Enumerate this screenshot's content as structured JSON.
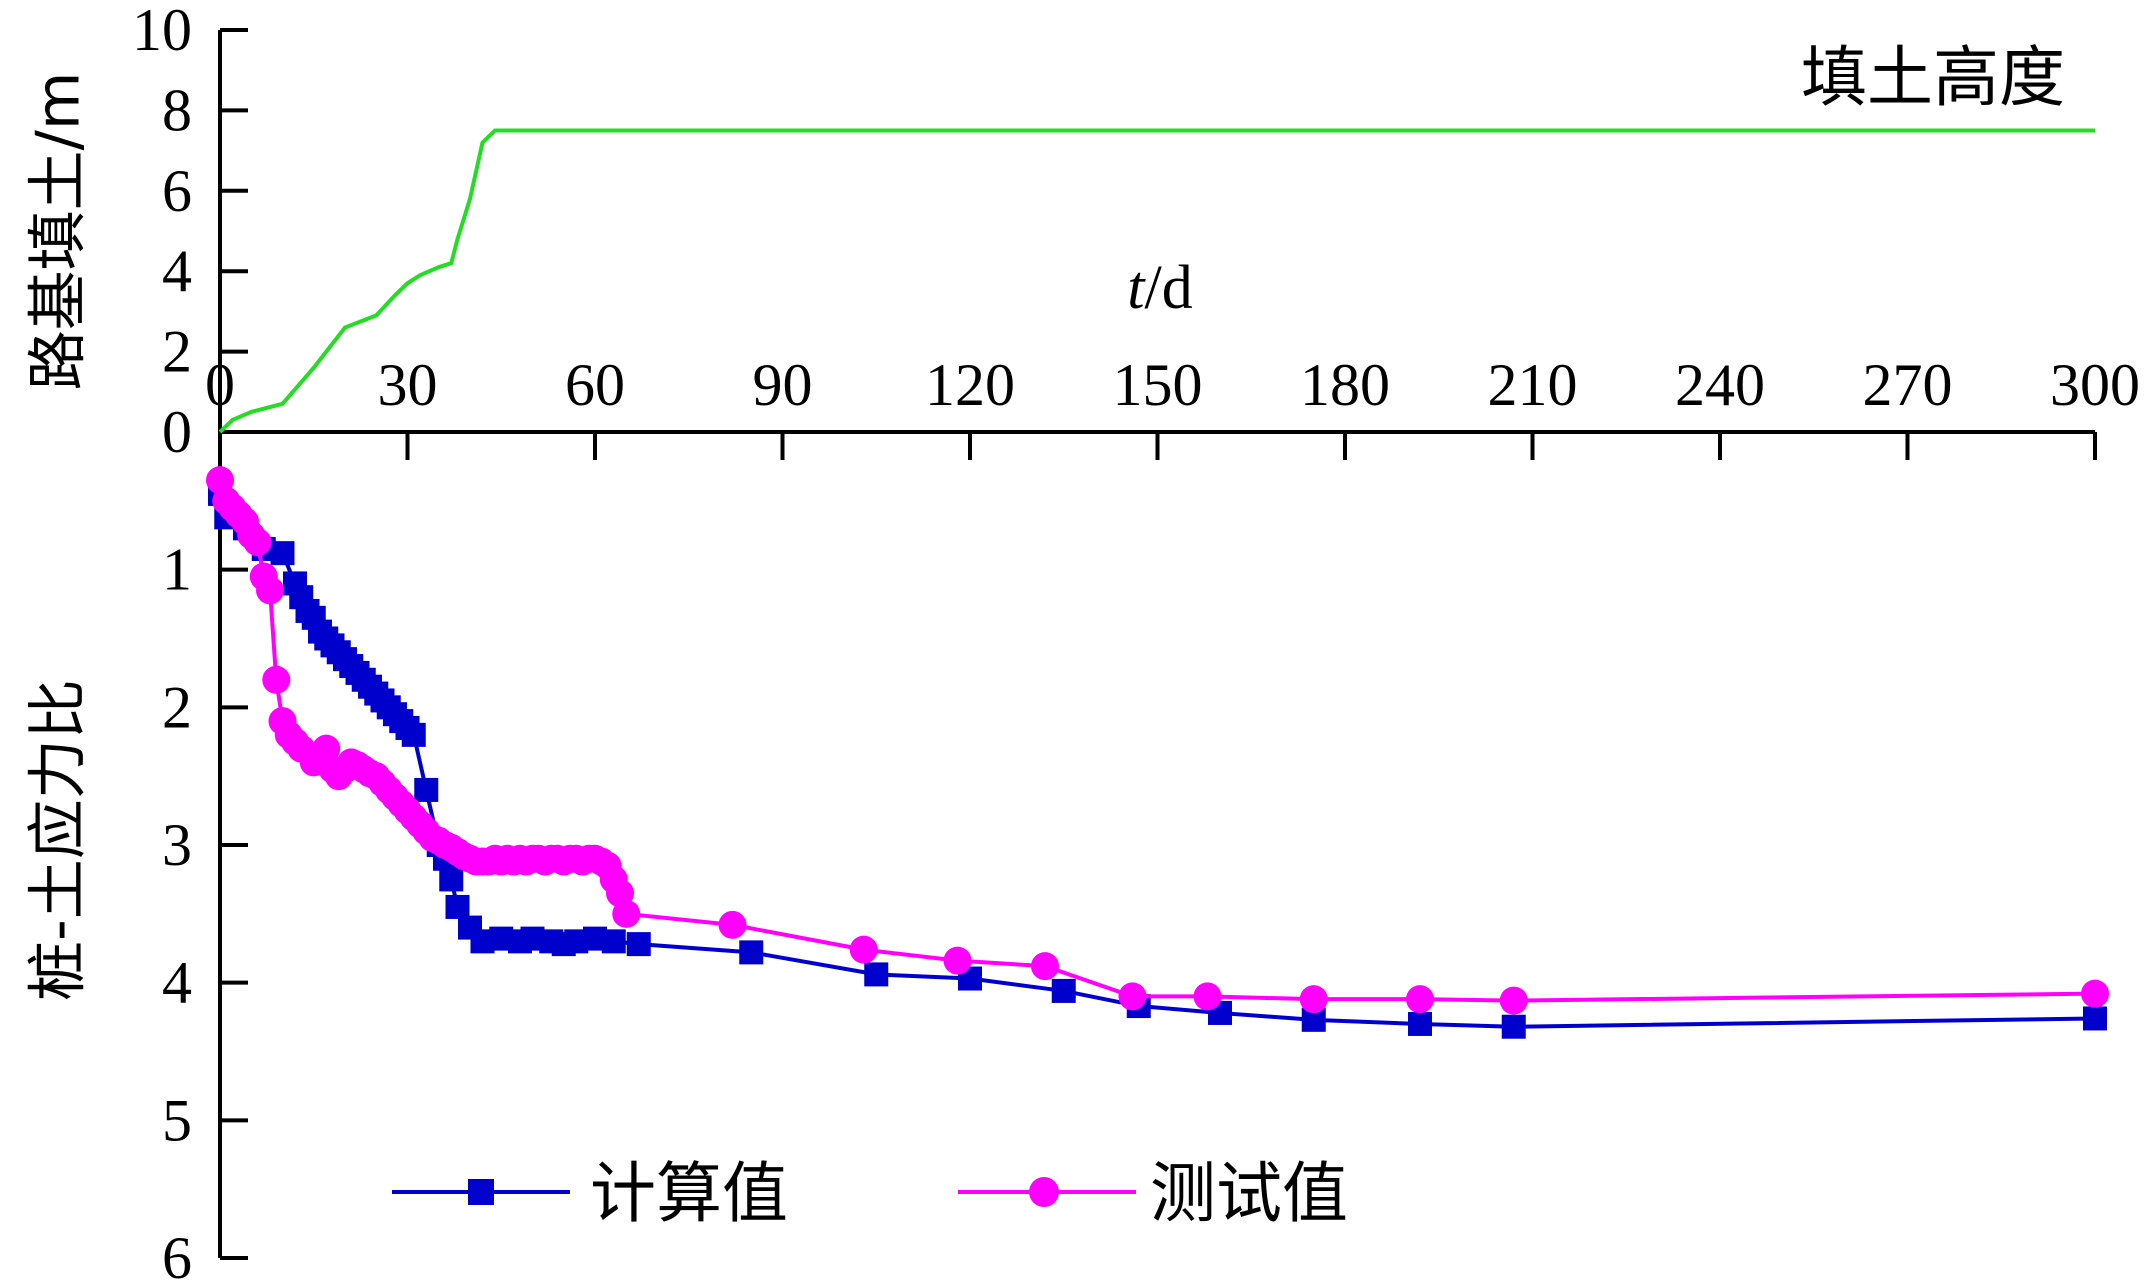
{
  "chart_data": [
    {
      "type": "line",
      "panel": "top",
      "ylabel": "路基填土/m",
      "xlabel_italic": "t",
      "xlabel_unit": "/d",
      "ylim": [
        0,
        10
      ],
      "xlim": [
        0,
        300
      ],
      "y_ticks": [
        0,
        2,
        4,
        6,
        8,
        10
      ],
      "x_ticks": [
        0,
        30,
        60,
        90,
        120,
        150,
        180,
        210,
        240,
        270,
        300
      ],
      "annotation": "填土高度",
      "series": [
        {
          "color": "#22dd22",
          "x": [
            0,
            2,
            5,
            10,
            15,
            20,
            25,
            28,
            30,
            32,
            35,
            37,
            38,
            40,
            42,
            44,
            46,
            50,
            100,
            150,
            200,
            250,
            300
          ],
          "y": [
            0,
            0.3,
            0.5,
            0.7,
            1.6,
            2.6,
            2.9,
            3.4,
            3.7,
            3.9,
            4.1,
            4.2,
            4.8,
            5.8,
            7.2,
            7.5,
            7.5,
            7.5,
            7.5,
            7.5,
            7.5,
            7.5,
            7.5
          ]
        }
      ]
    },
    {
      "type": "line",
      "panel": "bottom",
      "ylabel": "桩-土应力比",
      "ylim": [
        0,
        6
      ],
      "y_ticks": [
        1,
        2,
        3,
        4,
        5,
        6
      ],
      "y_inverted": true,
      "legend_position": "bottom-left",
      "series": [
        {
          "name": "计算值",
          "color": "#0000cc",
          "marker": "square",
          "x": [
            0,
            1,
            4,
            7,
            10,
            12,
            13,
            14,
            15,
            16,
            17,
            18,
            19,
            20,
            21,
            22,
            23,
            24,
            25,
            26,
            27,
            28,
            29,
            30,
            31,
            33,
            35,
            36,
            37,
            38,
            40,
            42,
            45,
            48,
            50,
            53,
            55,
            57,
            60,
            63,
            67,
            85,
            105,
            120,
            135,
            147,
            160,
            175,
            192,
            207,
            300
          ],
          "y": [
            0.45,
            0.62,
            0.7,
            0.85,
            0.88,
            1.1,
            1.2,
            1.3,
            1.35,
            1.45,
            1.5,
            1.55,
            1.6,
            1.65,
            1.7,
            1.75,
            1.8,
            1.85,
            1.9,
            1.95,
            2.0,
            2.05,
            2.1,
            2.15,
            2.2,
            2.6,
            3.0,
            3.1,
            3.25,
            3.45,
            3.6,
            3.7,
            3.68,
            3.7,
            3.68,
            3.7,
            3.72,
            3.7,
            3.68,
            3.7,
            3.72,
            3.78,
            3.94,
            3.97,
            4.06,
            4.17,
            4.22,
            4.27,
            4.3,
            4.32,
            4.26
          ]
        },
        {
          "name": "测试值",
          "color": "#ff00ff",
          "marker": "circle",
          "x": [
            0,
            1,
            2,
            3,
            4,
            5,
            6,
            7,
            8,
            9,
            10,
            11,
            12,
            13,
            15,
            16,
            17,
            18,
            19,
            20,
            21,
            22,
            23,
            24,
            25,
            26,
            27,
            28,
            29,
            30,
            31,
            32,
            33,
            34,
            35,
            36,
            37,
            38,
            39,
            40,
            41,
            42,
            43,
            44,
            45,
            46,
            47,
            48,
            49,
            50,
            51,
            52,
            53,
            54,
            55,
            56,
            57,
            58,
            59,
            60,
            61,
            62,
            63,
            64,
            65,
            82,
            103,
            118,
            132,
            146,
            158,
            175,
            192,
            207,
            300
          ],
          "y": [
            0.35,
            0.5,
            0.55,
            0.6,
            0.65,
            0.75,
            0.8,
            1.05,
            1.15,
            1.8,
            2.1,
            2.2,
            2.25,
            2.3,
            2.4,
            2.35,
            2.3,
            2.45,
            2.5,
            2.45,
            2.4,
            2.42,
            2.45,
            2.48,
            2.5,
            2.55,
            2.6,
            2.65,
            2.7,
            2.75,
            2.8,
            2.85,
            2.9,
            2.95,
            2.97,
            3.0,
            3.02,
            3.05,
            3.08,
            3.1,
            3.12,
            3.12,
            3.12,
            3.1,
            3.12,
            3.1,
            3.12,
            3.1,
            3.12,
            3.1,
            3.1,
            3.12,
            3.1,
            3.1,
            3.12,
            3.1,
            3.1,
            3.12,
            3.1,
            3.1,
            3.12,
            3.15,
            3.25,
            3.35,
            3.5,
            3.58,
            3.76,
            3.84,
            3.88,
            4.1,
            4.1,
            4.12,
            4.12,
            4.13,
            4.08
          ]
        }
      ]
    }
  ]
}
